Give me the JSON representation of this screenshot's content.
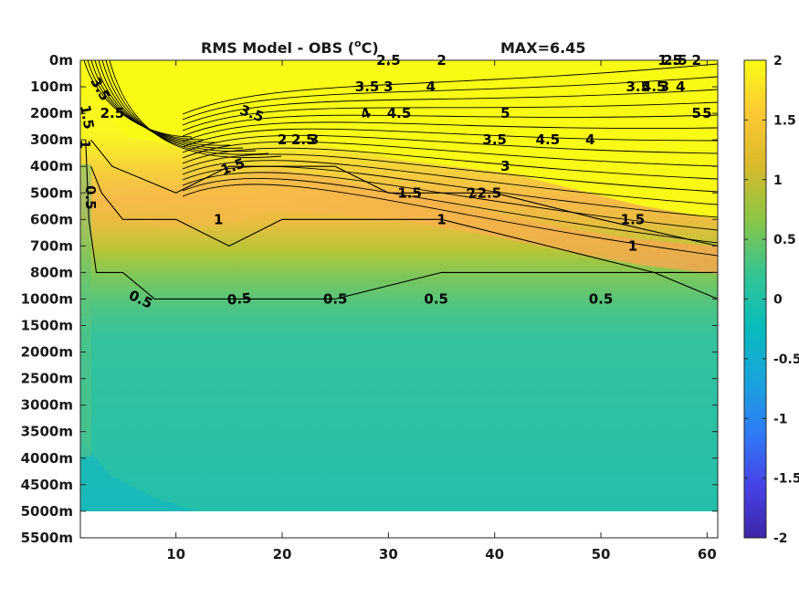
{
  "chart_data": {
    "type": "heatmap",
    "title": "RMS Model - OBS (",
    "title_sup": "o",
    "title_unit": "C)",
    "max_label": "MAX=6.45",
    "xlim": [
      1,
      61
    ],
    "xticks": [
      10,
      20,
      30,
      40,
      50,
      60
    ],
    "y_tick_labels": [
      "0m",
      "100m",
      "200m",
      "300m",
      "400m",
      "500m",
      "600m",
      "700m",
      "800m",
      "1000m",
      "1500m",
      "2000m",
      "2500m",
      "3000m",
      "3500m",
      "4000m",
      "4500m",
      "5000m",
      "5500m"
    ],
    "data_bottom_label": "5000m",
    "colorbar": {
      "clim": [
        -2,
        2
      ],
      "ticks": [
        2,
        1.5,
        1,
        0.5,
        0,
        -0.5,
        -1,
        -1.5,
        -2
      ],
      "tick_labels": [
        "2",
        "1.5",
        "1",
        "0.5",
        "0",
        "-0.5",
        "-1",
        "-1.5",
        "-2"
      ],
      "colormap": "parula",
      "colors": [
        "#3e26a8",
        "#4743e7",
        "#2f7cf5",
        "#1aa4dc",
        "#08bbbb",
        "#33c495",
        "#8dc543",
        "#d9b92b",
        "#fcc934",
        "#f9fb15"
      ]
    },
    "contours": [
      {
        "level": 0.5,
        "points": [
          [
            1.5,
            "300m"
          ],
          [
            1.8,
            "600m"
          ],
          [
            2.5,
            "800m"
          ],
          [
            5,
            "800m"
          ],
          [
            8,
            "1000m"
          ],
          [
            15,
            "1000m"
          ],
          [
            25,
            "1000m"
          ],
          [
            35,
            "800m"
          ],
          [
            45,
            "800m"
          ],
          [
            55,
            "800m"
          ],
          [
            61,
            "1000m"
          ]
        ]
      },
      {
        "level": 1,
        "points": [
          [
            2,
            "400m"
          ],
          [
            3,
            "500m"
          ],
          [
            5,
            "600m"
          ],
          [
            10,
            "600m"
          ],
          [
            15,
            "700m"
          ],
          [
            20,
            "600m"
          ],
          [
            27,
            "600m"
          ],
          [
            35,
            "600m"
          ],
          [
            45,
            "700m"
          ],
          [
            55,
            "800m"
          ],
          [
            61,
            "800m"
          ]
        ]
      },
      {
        "level": 1.5,
        "points": [
          [
            2,
            "300m"
          ],
          [
            4,
            "400m"
          ],
          [
            10,
            "500m"
          ],
          [
            15,
            "400m"
          ],
          [
            20,
            "400m"
          ],
          [
            25,
            "400m"
          ],
          [
            30,
            "500m"
          ],
          [
            40,
            "500m"
          ],
          [
            50,
            "600m"
          ],
          [
            61,
            "700m"
          ]
        ]
      }
    ],
    "contour_labels": [
      {
        "text": "0.5",
        "x": 6.5,
        "y": "1000m",
        "rot": 25
      },
      {
        "text": "0.5",
        "x": 16,
        "y": "1000m",
        "rot": -5
      },
      {
        "text": "0.5",
        "x": 25,
        "y": "1000m",
        "rot": 0
      },
      {
        "text": "0.5",
        "x": 34.5,
        "y": "1000m",
        "rot": 0
      },
      {
        "text": "0.5",
        "x": 50,
        "y": "1000m",
        "rot": 0
      },
      {
        "text": "0.5",
        "x": 1.5,
        "y": "500m",
        "rot": 90
      },
      {
        "text": "1",
        "x": 14,
        "y": "600m",
        "rot": 0
      },
      {
        "text": "1",
        "x": 35,
        "y": "600m",
        "rot": 0
      },
      {
        "text": "1",
        "x": 53,
        "y": "700m",
        "rot": 0
      },
      {
        "text": "1.5",
        "x": 15.5,
        "y": "400m",
        "rot": -20
      },
      {
        "text": "1.5",
        "x": 32,
        "y": "500m",
        "rot": 0
      },
      {
        "text": "1.5",
        "x": 53,
        "y": "600m",
        "rot": 0
      },
      {
        "text": "2",
        "x": 20,
        "y": "300m",
        "rot": 0
      },
      {
        "text": "2",
        "x": 38,
        "y": "500m",
        "rot": -20
      },
      {
        "text": "2",
        "x": 35,
        "y": "0m",
        "rot": 0
      },
      {
        "text": "2",
        "x": 59,
        "y": "0m",
        "rot": 0
      },
      {
        "text": "2.5",
        "x": 4,
        "y": "200m",
        "rot": 0
      },
      {
        "text": "2.5",
        "x": 22,
        "y": "300m",
        "rot": 0
      },
      {
        "text": "2.5",
        "x": 30,
        "y": "0m",
        "rot": 0
      },
      {
        "text": "2.5",
        "x": 57,
        "y": "0m",
        "rot": 0
      },
      {
        "text": "2.5",
        "x": 39.5,
        "y": "500m",
        "rot": 0
      },
      {
        "text": "3",
        "x": 23,
        "y": "300m",
        "rot": 0
      },
      {
        "text": "3",
        "x": 30,
        "y": "100m",
        "rot": 0
      },
      {
        "text": "3",
        "x": 41,
        "y": "400m",
        "rot": 0
      },
      {
        "text": "3",
        "x": 56,
        "y": "100m",
        "rot": 0
      },
      {
        "text": "3.5",
        "x": 17,
        "y": "200m",
        "rot": 20
      },
      {
        "text": "3.5",
        "x": 28,
        "y": "100m",
        "rot": 0
      },
      {
        "text": "3.5",
        "x": 40,
        "y": "300m",
        "rot": 0
      },
      {
        "text": "3.5",
        "x": 53.5,
        "y": "100m",
        "rot": 0
      },
      {
        "text": "4",
        "x": 34,
        "y": "100m",
        "rot": 0
      },
      {
        "text": "4",
        "x": 28,
        "y": "200m",
        "rot": -20
      },
      {
        "text": "4",
        "x": 49,
        "y": "300m",
        "rot": 0
      },
      {
        "text": "4",
        "x": 57.5,
        "y": "100m",
        "rot": 0
      },
      {
        "text": "4.5",
        "x": 31,
        "y": "200m",
        "rot": 0
      },
      {
        "text": "4.5",
        "x": 45,
        "y": "300m",
        "rot": 0
      },
      {
        "text": "4.5",
        "x": 55,
        "y": "100m",
        "rot": 0
      },
      {
        "text": "5",
        "x": 41,
        "y": "200m",
        "rot": 0
      },
      {
        "text": "5",
        "x": 60,
        "y": "200m",
        "rot": 0
      },
      {
        "text": "5",
        "x": 59,
        "y": "200m",
        "rot": 0
      },
      {
        "text": "1.5",
        "x": 56.5,
        "y": "0m",
        "rot": 0
      },
      {
        "text": "1",
        "x": 1,
        "y": "300m",
        "rot": 90
      },
      {
        "text": "1.5",
        "x": 1.2,
        "y": "200m",
        "rot": 80
      },
      {
        "text": "3.5",
        "x": 2.5,
        "y": "100m",
        "rot": 60
      }
    ],
    "colormap_stops": [
      {
        "depth": "0m",
        "value": 2
      },
      {
        "depth": "300m",
        "value": 1.7
      },
      {
        "depth": "500m",
        "value": 1.2
      },
      {
        "depth": "700m",
        "value": 0.9
      },
      {
        "depth": "1000m",
        "value": 0.6
      },
      {
        "depth": "1500m",
        "value": 0.5
      },
      {
        "depth": "5000m",
        "value": 0.45
      }
    ]
  }
}
